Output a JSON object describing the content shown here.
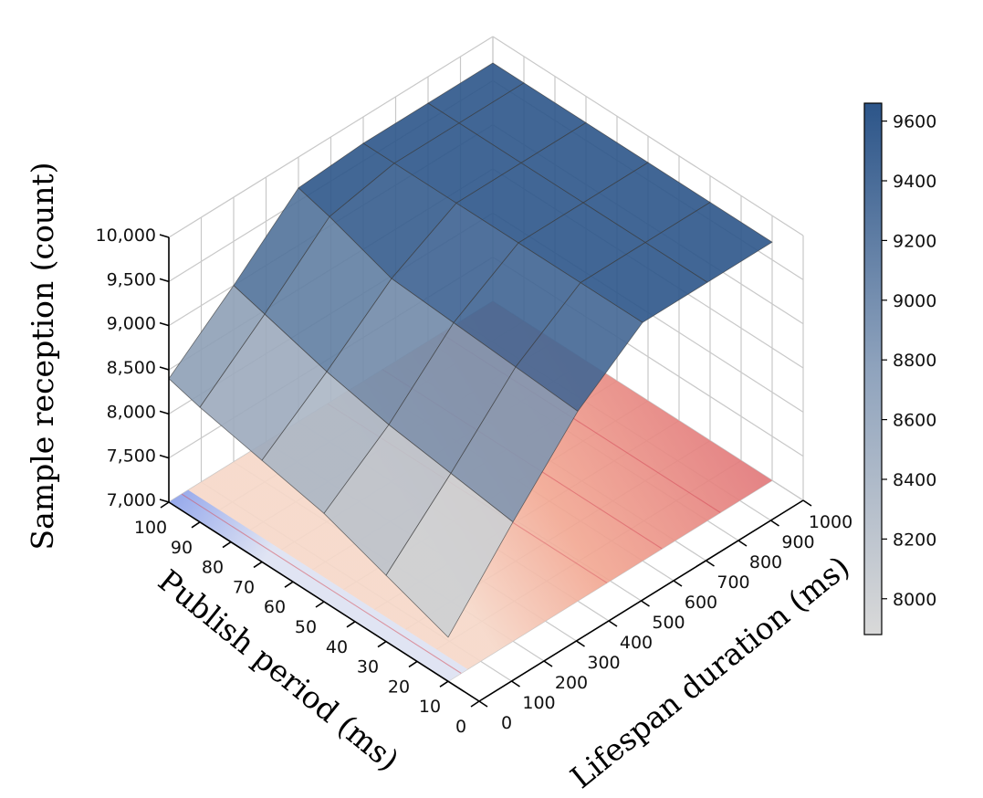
{
  "chart_data": {
    "type": "surface3d",
    "title": "",
    "xlabel": "Lifespan duration (ms)",
    "ylabel": "Publish period (ms)",
    "zlabel": "Sample reception (count)",
    "x_ticks": [
      "0",
      "100",
      "200",
      "300",
      "400",
      "500",
      "600",
      "700",
      "800",
      "900",
      "1000"
    ],
    "y_ticks": [
      "0",
      "10",
      "20",
      "30",
      "40",
      "50",
      "60",
      "70",
      "80",
      "90",
      "100"
    ],
    "z_ticks": [
      "7,000",
      "7,500",
      "8,000",
      "8,500",
      "9,000",
      "9,500",
      "10,000"
    ],
    "xlim": [
      0,
      1000
    ],
    "ylim": [
      0,
      100
    ],
    "zlim": [
      7000,
      10000
    ],
    "surface": {
      "x": [
        0,
        200,
        400,
        600,
        800,
        1000
      ],
      "y": [
        10,
        30,
        50,
        70,
        90,
        100
      ],
      "z": [
        [
          7500,
          8350,
          9150,
          9700,
          9700,
          9700
        ],
        [
          7750,
          8450,
          9200,
          9700,
          9700,
          9700
        ],
        [
          8000,
          8550,
          9250,
          9700,
          9700,
          9700
        ],
        [
          8150,
          8700,
          9300,
          9700,
          9700,
          9700
        ],
        [
          8300,
          8900,
          9550,
          9700,
          9700,
          9700
        ],
        [
          8400,
          9000,
          9650,
          9700,
          9700,
          9700
        ]
      ]
    },
    "floor_projection": {
      "z": 7000,
      "colormap": "coolwarm"
    },
    "colorbar": {
      "ticks": [
        "8000",
        "8200",
        "8400",
        "8600",
        "8800",
        "9000",
        "9200",
        "9400",
        "9600"
      ],
      "range": [
        7880,
        9660
      ],
      "colors": [
        "#d9d9d9",
        "#2c5589"
      ]
    },
    "grid": true
  }
}
